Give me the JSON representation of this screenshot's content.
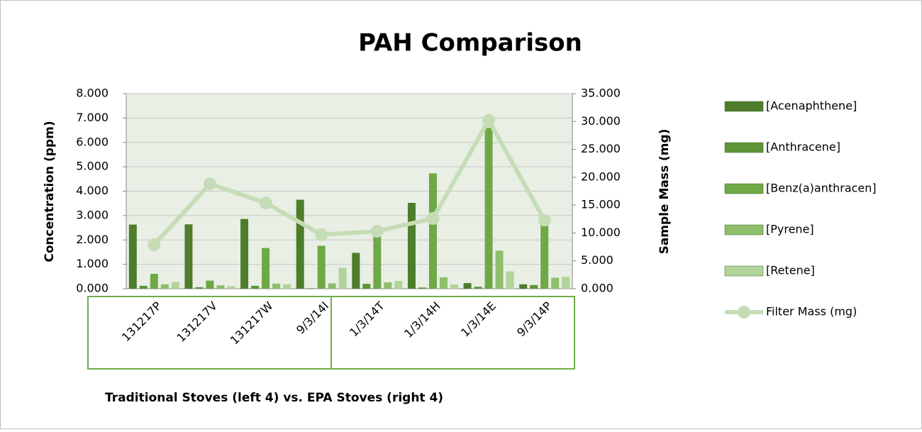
{
  "chart_data": {
    "type": "bar",
    "title": "PAH Comparison",
    "x_label": "Traditional Stoves (left 4) vs. EPA Stoves (right 4)",
    "y_label": "Concentration (ppm)",
    "y2_label": "Sample Mass (mg)",
    "categories": [
      "131217P",
      "131217V",
      "131217W",
      "9/3/14I",
      "1/3/14T",
      "1/3/14H",
      "1/3/14E",
      "9/3/14P"
    ],
    "series": [
      {
        "name": "[Acenaphthene]",
        "color": "#4e7d2c",
        "values": [
          2.63,
          2.64,
          2.86,
          3.65,
          1.47,
          3.52,
          0.23,
          0.18
        ]
      },
      {
        "name": "[Anthracene]",
        "color": "#5f9438",
        "values": [
          0.12,
          0.06,
          0.12,
          0.02,
          0.2,
          0.05,
          0.08,
          0.15
        ]
      },
      {
        "name": "[Benz(a)anthracen]",
        "color": "#6fa847",
        "values": [
          0.61,
          0.33,
          1.67,
          1.76,
          2.4,
          4.73,
          6.6,
          2.8
        ]
      },
      {
        "name": "[Pyrene]",
        "color": "#8fbe6b",
        "values": [
          0.18,
          0.14,
          0.21,
          0.22,
          0.26,
          0.47,
          1.56,
          0.45
        ]
      },
      {
        "name": "[Retene]",
        "color": "#b2d39a",
        "values": [
          0.27,
          0.1,
          0.18,
          0.86,
          0.32,
          0.17,
          0.71,
          0.49
        ]
      },
      {
        "name": "Filter Mass (mg)",
        "color": "#c6dcb6",
        "type": "line",
        "axis": "y2",
        "values": [
          7.9,
          18.8,
          15.4,
          9.7,
          10.3,
          12.6,
          30.2,
          12.3
        ]
      }
    ],
    "ylim": [
      0,
      8
    ],
    "yticks": [
      {
        "value": 0,
        "label": "0.000"
      },
      {
        "value": 1,
        "label": "1.000"
      },
      {
        "value": 2,
        "label": "2.000"
      },
      {
        "value": 3,
        "label": "3.000"
      },
      {
        "value": 4,
        "label": "4.000"
      },
      {
        "value": 5,
        "label": "5.000"
      },
      {
        "value": 6,
        "label": "6.000"
      },
      {
        "value": 7,
        "label": "7.000"
      },
      {
        "value": 8,
        "label": "8.000"
      }
    ],
    "y2lim": [
      0,
      35
    ],
    "y2ticks": [
      {
        "value": 0,
        "label": "0.000"
      },
      {
        "value": 5,
        "label": "5.000"
      },
      {
        "value": 10,
        "label": "10.000"
      },
      {
        "value": 15,
        "label": "15.000"
      },
      {
        "value": 20,
        "label": "20.000"
      },
      {
        "value": 25,
        "label": "25.000"
      },
      {
        "value": 30,
        "label": "30.000"
      },
      {
        "value": 35,
        "label": "35.000"
      }
    ],
    "grid": true,
    "legend": "right"
  }
}
